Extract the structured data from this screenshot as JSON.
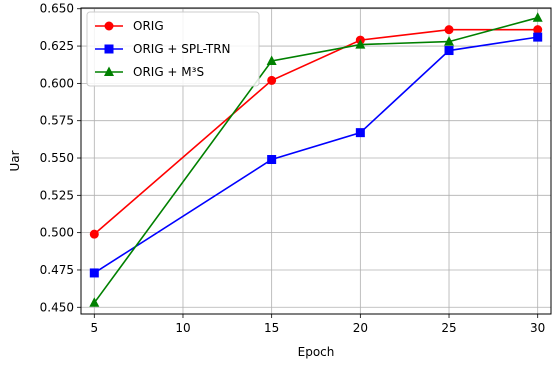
{
  "chart_data": {
    "type": "line",
    "xlabel": "Epoch",
    "ylabel": "Uar",
    "xlim": [
      4.25,
      30.75
    ],
    "ylim": [
      0.4455,
      0.6505
    ],
    "x_ticks": [
      5,
      10,
      15,
      20,
      25,
      30
    ],
    "y_ticks": [
      0.45,
      0.475,
      0.5,
      0.525,
      0.55,
      0.575,
      0.6,
      0.625,
      0.65
    ],
    "x_tick_labels": [
      "5",
      "10",
      "15",
      "20",
      "25",
      "30"
    ],
    "y_tick_labels": [
      "0.450",
      "0.475",
      "0.500",
      "0.525",
      "0.550",
      "0.575",
      "0.600",
      "0.625",
      "0.650"
    ],
    "grid": true,
    "legend_position": "top-left",
    "series": [
      {
        "name": "ORIG",
        "color": "#ff0000",
        "marker": "circle",
        "x": [
          5,
          15,
          20,
          25,
          30
        ],
        "values": [
          0.499,
          0.602,
          0.629,
          0.636,
          0.636
        ]
      },
      {
        "name": "ORIG + SPL-TRN",
        "color": "#0000ff",
        "marker": "square",
        "x": [
          5,
          15,
          20,
          25,
          30
        ],
        "values": [
          0.473,
          0.549,
          0.567,
          0.622,
          0.631
        ]
      },
      {
        "name": "ORIG + M³S",
        "color": "#008000",
        "marker": "triangle",
        "x": [
          5,
          15,
          20,
          25,
          30
        ],
        "values": [
          0.453,
          0.615,
          0.626,
          0.628,
          0.644
        ]
      }
    ]
  }
}
